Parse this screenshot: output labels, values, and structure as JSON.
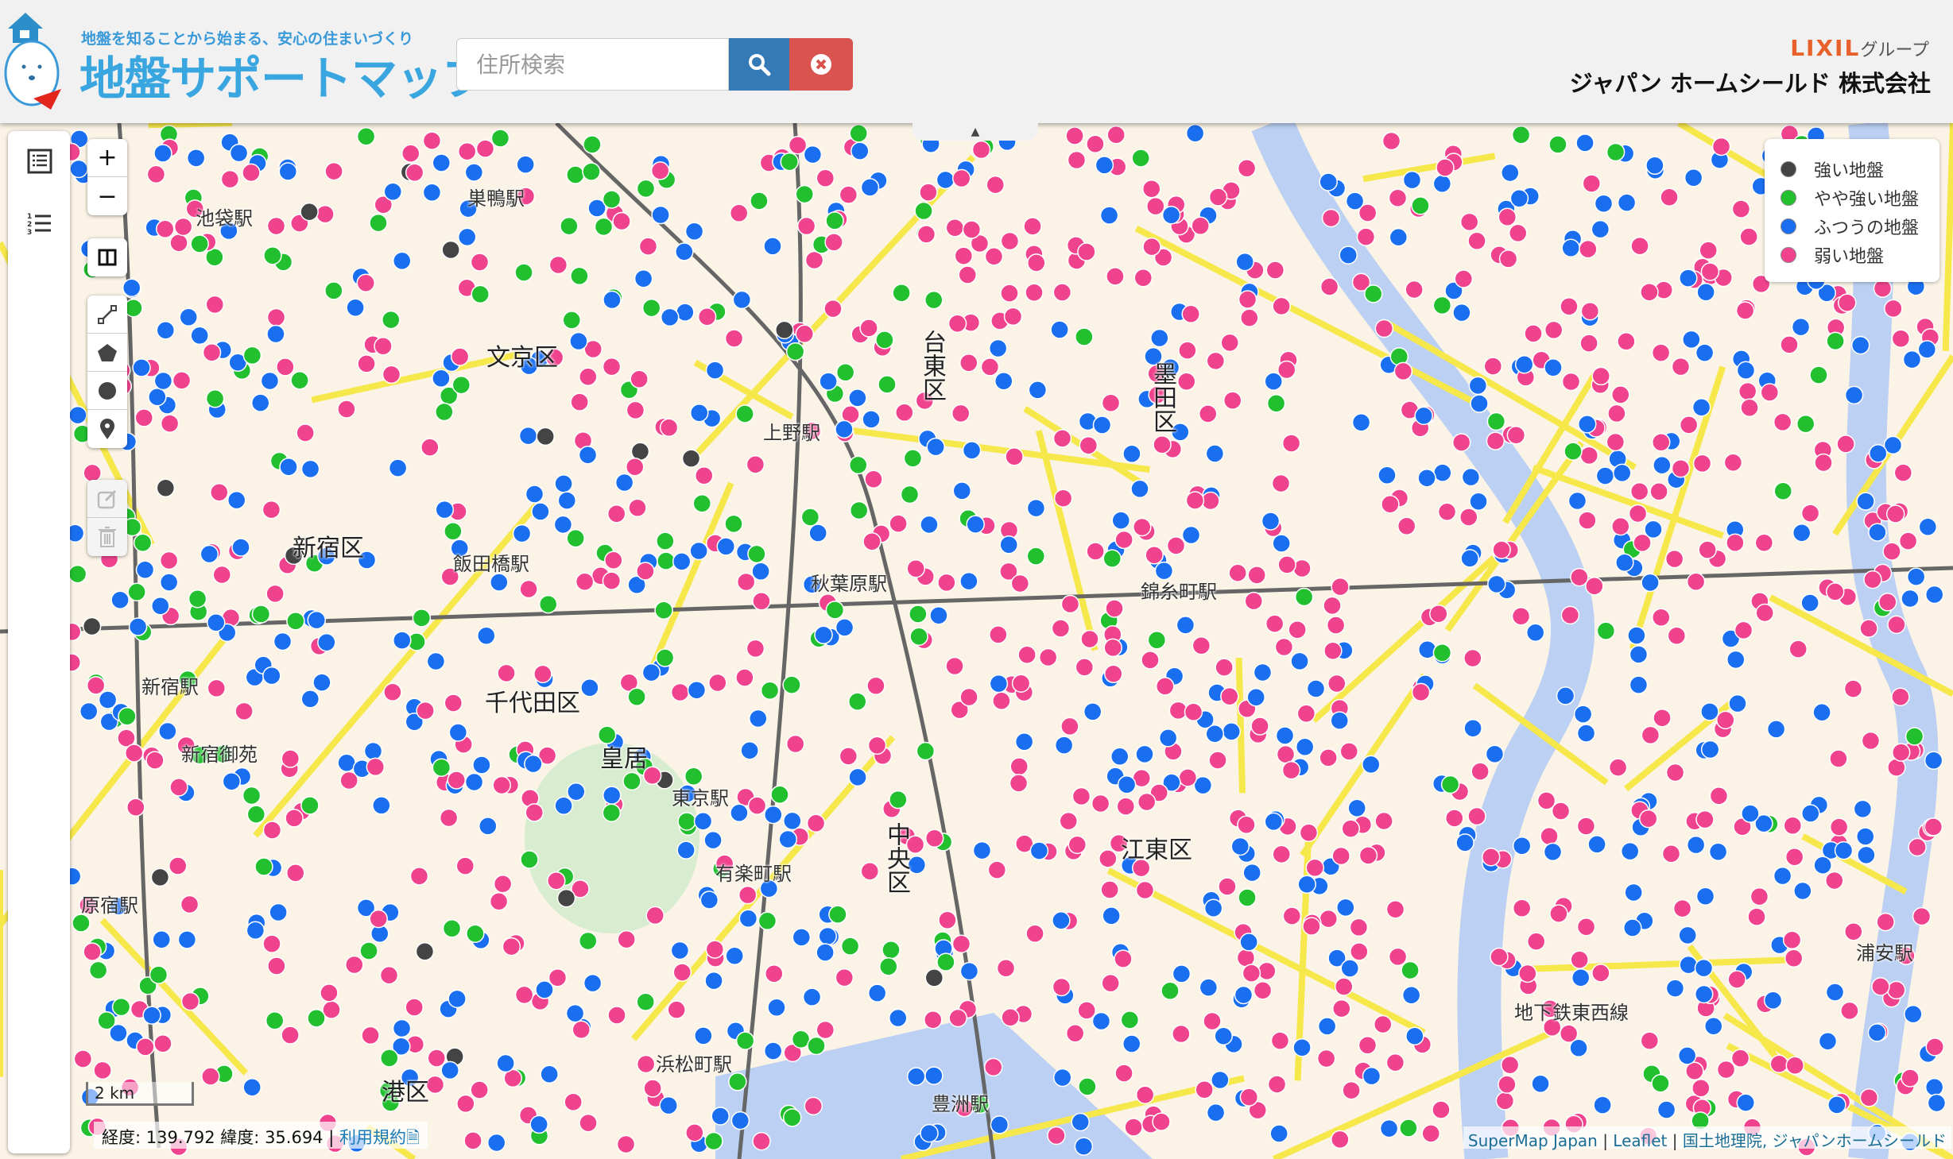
{
  "header": {
    "tagline": "地盤を知ることから始まる、安心の住まいづくり",
    "title": "地盤サポートマップ",
    "search_placeholder": "住所検索",
    "search_value": "",
    "lixil_brand": "LIXIL",
    "lixil_group": "グループ",
    "company": "ジャパン ホームシールド 株式会社"
  },
  "icons": {
    "search": "search-icon",
    "clear": "times-circle-icon",
    "layers": "list-alt-icon",
    "ordered": "ordered-list-icon",
    "split": "columns-icon",
    "line": "draw-polyline-icon",
    "polygon": "draw-polygon-icon",
    "circle": "draw-circle-icon",
    "marker": "draw-marker-icon",
    "edit": "edit-icon",
    "delete": "trash-icon"
  },
  "controls": {
    "zoom_in": "+",
    "zoom_out": "−"
  },
  "legend": {
    "items": [
      {
        "label": "強い地盤",
        "color": "#444444"
      },
      {
        "label": "やや強い地盤",
        "color": "#22c02e"
      },
      {
        "label": "ふつうの地盤",
        "color": "#1a6ef0"
      },
      {
        "label": "弱い地盤",
        "color": "#f0438e"
      }
    ]
  },
  "map": {
    "places": [
      {
        "name": "池袋駅",
        "type": "station"
      },
      {
        "name": "巣鴨駅",
        "type": "station"
      },
      {
        "name": "文京区",
        "type": "ward"
      },
      {
        "name": "新宿区",
        "type": "ward"
      },
      {
        "name": "千代田区",
        "type": "ward"
      },
      {
        "name": "皇居",
        "type": "ward"
      },
      {
        "name": "東京駅",
        "type": "station"
      },
      {
        "name": "中央区",
        "type": "ward"
      },
      {
        "name": "江東区",
        "type": "ward"
      },
      {
        "name": "港区",
        "type": "ward"
      },
      {
        "name": "錦糸町駅",
        "type": "station"
      },
      {
        "name": "秋葉原駅",
        "type": "station"
      },
      {
        "name": "上野駅",
        "type": "station"
      },
      {
        "name": "新宿駅",
        "type": "station"
      },
      {
        "name": "新宿御苑",
        "type": "station"
      },
      {
        "name": "原宿駅",
        "type": "station"
      },
      {
        "name": "有楽町駅",
        "type": "station"
      },
      {
        "name": "豊洲駅",
        "type": "station"
      },
      {
        "name": "地下鉄東西線",
        "type": "station"
      },
      {
        "name": "浜松町駅",
        "type": "station"
      },
      {
        "name": "飯田橋駅",
        "type": "station"
      },
      {
        "name": "台東区",
        "type": "ward"
      },
      {
        "name": "墨田区",
        "type": "ward"
      },
      {
        "name": "浦安駅",
        "type": "station"
      }
    ],
    "scale": "2 km",
    "coords": {
      "lon_label": "経度:",
      "lon": "139.792",
      "lat_label": "緯度:",
      "lat": "35.694",
      "sep": "|",
      "terms": "利用規約"
    },
    "attribution": {
      "a": "SuperMap Japan",
      "b": "Leaflet",
      "c": "国土地理院",
      "d": "ジャパンホームシールド",
      "sep": "|"
    }
  }
}
